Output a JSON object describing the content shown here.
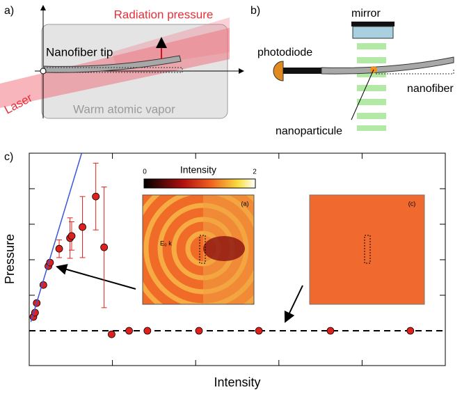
{
  "panel_labels": [
    "a)",
    "b)",
    "c)"
  ],
  "diagram_a": {
    "radiation_pressure": "Radiation pressure",
    "nanofiber_tip": "Nanofiber tip",
    "laser": "Laser",
    "vapor": "Warm atomic  vapor"
  },
  "diagram_b": {
    "mirror": "mirror",
    "photodiode": "photodiode",
    "nanoparticule": "nanoparticule",
    "nanofiber": "nanofiber"
  },
  "chart_data": {
    "type": "scatter",
    "x_label": "Intensity",
    "y_label": "Pressure",
    "xlim": [
      0,
      5
    ],
    "ylim": [
      -0.98,
      5
    ],
    "xticks": [
      1,
      2,
      3,
      4
    ],
    "yticks": [
      1,
      2,
      3,
      4
    ],
    "zero_line": true,
    "series": [
      {
        "style": "markers",
        "color": "#e0201c",
        "x": [
          0.05,
          0.07,
          0.09,
          0.17,
          0.23,
          0.25,
          0.36,
          0.49,
          0.51,
          0.64,
          0.8,
          0.9,
          0.99,
          1.2,
          1.42,
          2.04,
          2.76,
          3.62,
          4.58
        ],
        "values": [
          0.39,
          0.51,
          0.78,
          1.29,
          1.82,
          1.92,
          2.31,
          2.61,
          2.67,
          2.92,
          3.78,
          2.35,
          -0.1,
          0,
          0,
          0,
          0,
          0,
          0
        ],
        "errors": [
          null,
          null,
          null,
          null,
          null,
          null,
          0.25,
          0.57,
          0.4,
          0.86,
          0.94,
          1.7,
          null,
          null,
          null,
          null,
          null,
          null,
          null
        ]
      },
      {
        "style": "line",
        "color": "#3a55d8",
        "x": [
          0.02,
          0.63
        ],
        "values": [
          0.25,
          5
        ]
      }
    ],
    "insets": [
      {
        "label": "(a)",
        "field_label": "E₀ k",
        "colorbar": {
          "title": "Intensity",
          "min": 0,
          "max": 2
        }
      },
      {
        "label": "(c)"
      }
    ]
  }
}
